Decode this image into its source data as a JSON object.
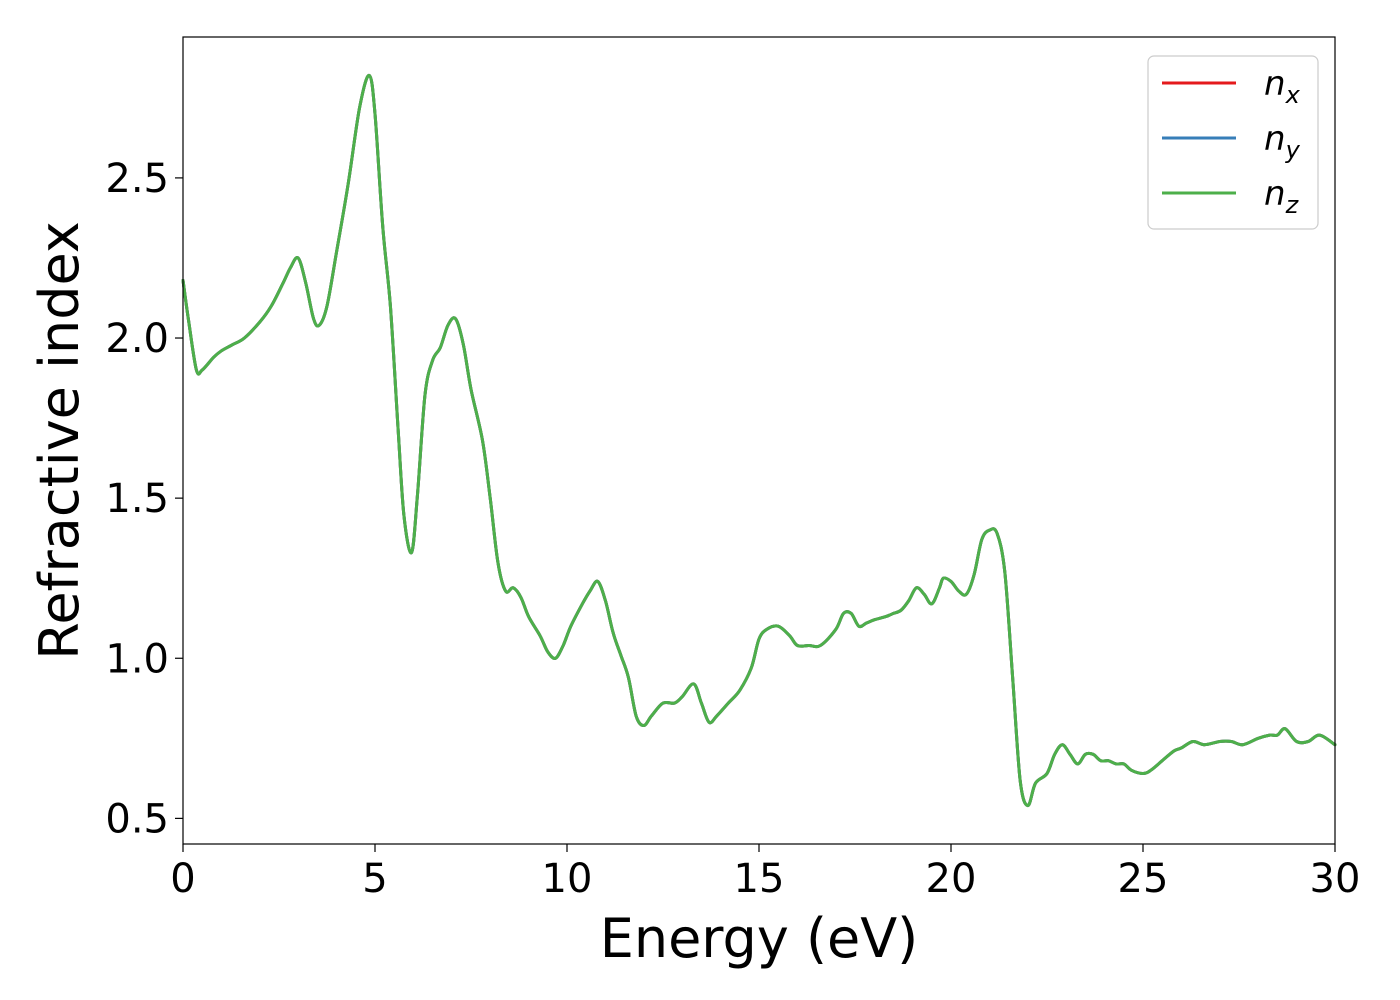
{
  "chart_data": {
    "type": "line",
    "title": "",
    "xlabel": "Energy (eV)",
    "ylabel": "Refractive index",
    "xlim": [
      0,
      30
    ],
    "ylim": [
      0.42,
      2.94
    ],
    "xticks": [
      0,
      5,
      10,
      15,
      20,
      25,
      30
    ],
    "xtick_labels": [
      "0",
      "5",
      "10",
      "15",
      "20",
      "25",
      "30"
    ],
    "yticks": [
      0.5,
      1.0,
      1.5,
      2.0,
      2.5
    ],
    "ytick_labels": [
      "0.5",
      "1.0",
      "1.5",
      "2.0",
      "2.5"
    ],
    "grid": false,
    "legend_position": "top-right",
    "x": [
      0,
      0.15,
      0.35,
      0.5,
      0.8,
      1.0,
      1.3,
      1.6,
      2.0,
      2.3,
      2.6,
      2.8,
      3.0,
      3.2,
      3.4,
      3.55,
      3.75,
      4.0,
      4.3,
      4.6,
      4.85,
      5.0,
      5.2,
      5.4,
      5.6,
      5.75,
      5.95,
      6.1,
      6.3,
      6.5,
      6.7,
      6.9,
      7.1,
      7.3,
      7.5,
      7.8,
      8.0,
      8.2,
      8.4,
      8.6,
      8.8,
      9.0,
      9.3,
      9.5,
      9.7,
      9.9,
      10.1,
      10.4,
      10.6,
      10.8,
      11.0,
      11.2,
      11.4,
      11.6,
      11.8,
      12.0,
      12.2,
      12.5,
      12.8,
      13.0,
      13.3,
      13.5,
      13.7,
      13.9,
      14.2,
      14.5,
      14.8,
      15.0,
      15.2,
      15.5,
      15.8,
      16.0,
      16.3,
      16.6,
      17.0,
      17.2,
      17.4,
      17.6,
      17.8,
      18.0,
      18.3,
      18.5,
      18.7,
      18.9,
      19.1,
      19.3,
      19.5,
      19.7,
      19.8,
      20.0,
      20.2,
      20.4,
      20.6,
      20.8,
      21.0,
      21.2,
      21.4,
      21.6,
      21.8,
      22.0,
      22.2,
      22.5,
      22.7,
      22.9,
      23.1,
      23.3,
      23.5,
      23.7,
      23.9,
      24.1,
      24.3,
      24.5,
      24.7,
      25.0,
      25.2,
      25.5,
      25.8,
      26.0,
      26.3,
      26.6,
      27.0,
      27.3,
      27.6,
      28.0,
      28.3,
      28.5,
      28.7,
      29.0,
      29.3,
      29.6,
      30.0
    ],
    "series": [
      {
        "name": "n_x",
        "label_base": "n",
        "label_sub": "x",
        "color": "#e41a1c",
        "values": [
          2.18,
          2.05,
          1.9,
          1.9,
          1.94,
          1.96,
          1.98,
          2.0,
          2.05,
          2.1,
          2.17,
          2.22,
          2.25,
          2.17,
          2.06,
          2.04,
          2.1,
          2.27,
          2.48,
          2.72,
          2.82,
          2.7,
          2.35,
          2.1,
          1.72,
          1.45,
          1.33,
          1.5,
          1.82,
          1.93,
          1.97,
          2.04,
          2.06,
          1.98,
          1.84,
          1.68,
          1.5,
          1.3,
          1.21,
          1.22,
          1.19,
          1.13,
          1.07,
          1.02,
          1.0,
          1.04,
          1.1,
          1.17,
          1.21,
          1.24,
          1.18,
          1.08,
          1.01,
          0.94,
          0.82,
          0.79,
          0.82,
          0.86,
          0.86,
          0.88,
          0.92,
          0.86,
          0.8,
          0.82,
          0.86,
          0.9,
          0.97,
          1.06,
          1.09,
          1.1,
          1.07,
          1.04,
          1.04,
          1.04,
          1.09,
          1.14,
          1.14,
          1.1,
          1.11,
          1.12,
          1.13,
          1.14,
          1.15,
          1.18,
          1.22,
          1.2,
          1.17,
          1.22,
          1.25,
          1.24,
          1.21,
          1.2,
          1.26,
          1.37,
          1.4,
          1.39,
          1.27,
          0.95,
          0.62,
          0.54,
          0.61,
          0.64,
          0.7,
          0.73,
          0.7,
          0.67,
          0.7,
          0.7,
          0.68,
          0.68,
          0.67,
          0.67,
          0.65,
          0.64,
          0.65,
          0.68,
          0.71,
          0.72,
          0.74,
          0.73,
          0.74,
          0.74,
          0.73,
          0.75,
          0.76,
          0.76,
          0.78,
          0.74,
          0.74,
          0.76,
          0.73
        ]
      },
      {
        "name": "n_y",
        "label_base": "n",
        "label_sub": "y",
        "color": "#377eb8",
        "values": [
          2.18,
          2.05,
          1.9,
          1.9,
          1.94,
          1.96,
          1.98,
          2.0,
          2.05,
          2.1,
          2.17,
          2.22,
          2.25,
          2.17,
          2.06,
          2.04,
          2.1,
          2.27,
          2.48,
          2.72,
          2.82,
          2.7,
          2.35,
          2.1,
          1.72,
          1.45,
          1.33,
          1.5,
          1.82,
          1.93,
          1.97,
          2.04,
          2.06,
          1.98,
          1.84,
          1.68,
          1.5,
          1.3,
          1.21,
          1.22,
          1.19,
          1.13,
          1.07,
          1.02,
          1.0,
          1.04,
          1.1,
          1.17,
          1.21,
          1.24,
          1.18,
          1.08,
          1.01,
          0.94,
          0.82,
          0.79,
          0.82,
          0.86,
          0.86,
          0.88,
          0.92,
          0.86,
          0.8,
          0.82,
          0.86,
          0.9,
          0.97,
          1.06,
          1.09,
          1.1,
          1.07,
          1.04,
          1.04,
          1.04,
          1.09,
          1.14,
          1.14,
          1.1,
          1.11,
          1.12,
          1.13,
          1.14,
          1.15,
          1.18,
          1.22,
          1.2,
          1.17,
          1.22,
          1.25,
          1.24,
          1.21,
          1.2,
          1.26,
          1.37,
          1.4,
          1.39,
          1.27,
          0.95,
          0.62,
          0.54,
          0.61,
          0.64,
          0.7,
          0.73,
          0.7,
          0.67,
          0.7,
          0.7,
          0.68,
          0.68,
          0.67,
          0.67,
          0.65,
          0.64,
          0.65,
          0.68,
          0.71,
          0.72,
          0.74,
          0.73,
          0.74,
          0.74,
          0.73,
          0.75,
          0.76,
          0.76,
          0.78,
          0.74,
          0.74,
          0.76,
          0.73
        ]
      },
      {
        "name": "n_z",
        "label_base": "n",
        "label_sub": "z",
        "color": "#4daf4a",
        "values": [
          2.18,
          2.05,
          1.9,
          1.9,
          1.94,
          1.96,
          1.98,
          2.0,
          2.05,
          2.1,
          2.17,
          2.22,
          2.25,
          2.17,
          2.06,
          2.04,
          2.1,
          2.27,
          2.48,
          2.72,
          2.82,
          2.7,
          2.35,
          2.1,
          1.72,
          1.45,
          1.33,
          1.5,
          1.82,
          1.93,
          1.97,
          2.04,
          2.06,
          1.98,
          1.84,
          1.68,
          1.5,
          1.3,
          1.21,
          1.22,
          1.19,
          1.13,
          1.07,
          1.02,
          1.0,
          1.04,
          1.1,
          1.17,
          1.21,
          1.24,
          1.18,
          1.08,
          1.01,
          0.94,
          0.82,
          0.79,
          0.82,
          0.86,
          0.86,
          0.88,
          0.92,
          0.86,
          0.8,
          0.82,
          0.86,
          0.9,
          0.97,
          1.06,
          1.09,
          1.1,
          1.07,
          1.04,
          1.04,
          1.04,
          1.09,
          1.14,
          1.14,
          1.1,
          1.11,
          1.12,
          1.13,
          1.14,
          1.15,
          1.18,
          1.22,
          1.2,
          1.17,
          1.22,
          1.25,
          1.24,
          1.21,
          1.2,
          1.26,
          1.37,
          1.4,
          1.39,
          1.27,
          0.95,
          0.62,
          0.54,
          0.61,
          0.64,
          0.7,
          0.73,
          0.7,
          0.67,
          0.7,
          0.7,
          0.68,
          0.68,
          0.67,
          0.67,
          0.65,
          0.64,
          0.65,
          0.68,
          0.71,
          0.72,
          0.74,
          0.73,
          0.74,
          0.74,
          0.73,
          0.75,
          0.76,
          0.76,
          0.78,
          0.74,
          0.74,
          0.76,
          0.73
        ]
      }
    ]
  }
}
